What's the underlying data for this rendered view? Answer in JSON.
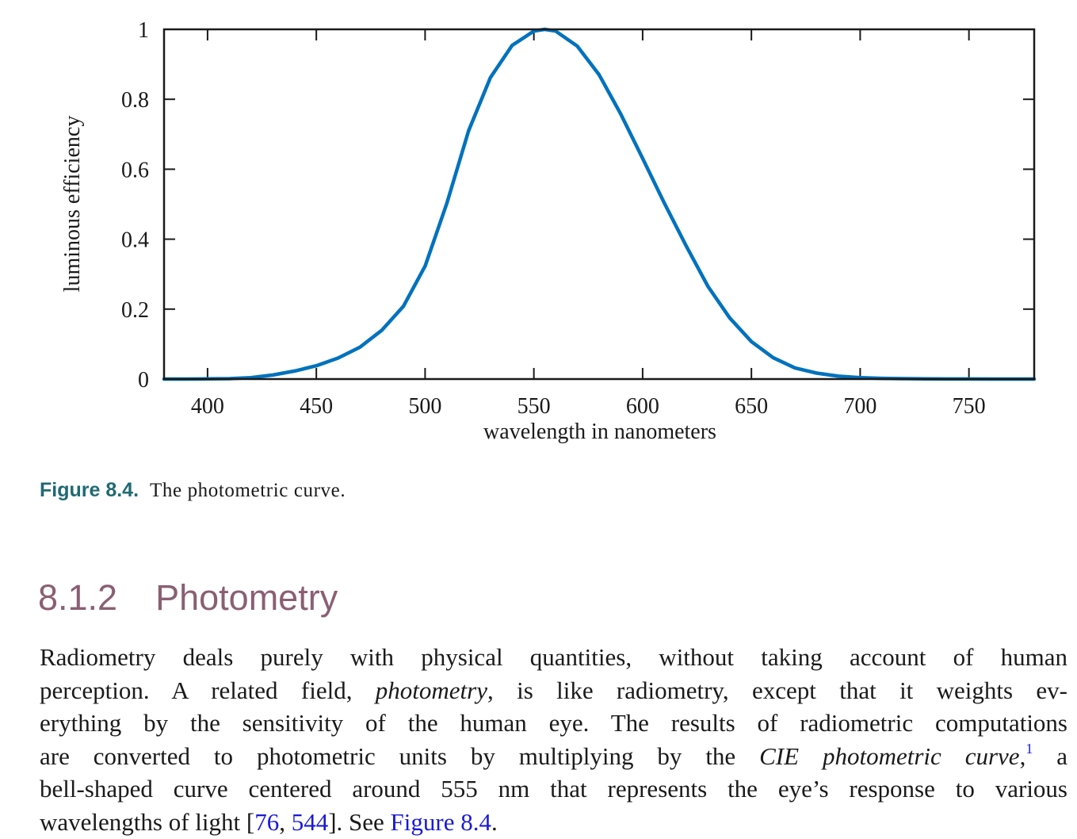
{
  "chart_data": {
    "type": "line",
    "xlabel": "wavelength in nanometers",
    "ylabel": "luminous efficiency",
    "xlim": [
      380,
      780
    ],
    "ylim": [
      0,
      1
    ],
    "x_ticks": [
      400,
      450,
      500,
      550,
      600,
      650,
      700,
      750
    ],
    "y_ticks": [
      0,
      0.2,
      0.4,
      0.6,
      0.8,
      1
    ],
    "y_tick_labels": [
      "0",
      "0.2",
      "0.4",
      "0.6",
      "0.8",
      "1"
    ],
    "grid": false,
    "line_color": "#0072bd",
    "series": [
      {
        "x": [
          380,
          390,
          400,
          410,
          420,
          430,
          440,
          450,
          460,
          470,
          480,
          490,
          500,
          510,
          520,
          530,
          540,
          550,
          555,
          560,
          570,
          580,
          590,
          600,
          610,
          620,
          630,
          640,
          650,
          660,
          670,
          680,
          690,
          700,
          710,
          720,
          730,
          740,
          750,
          760,
          770,
          780
        ],
        "y": [
          0.0,
          0.0001,
          0.0004,
          0.0012,
          0.004,
          0.0116,
          0.023,
          0.038,
          0.06,
          0.091,
          0.139,
          0.208,
          0.323,
          0.503,
          0.71,
          0.862,
          0.954,
          0.995,
          1.0,
          0.995,
          0.952,
          0.87,
          0.757,
          0.631,
          0.503,
          0.381,
          0.265,
          0.175,
          0.107,
          0.061,
          0.032,
          0.017,
          0.0082,
          0.0041,
          0.0021,
          0.00105,
          0.00052,
          0.00025,
          0.00012,
          6e-05,
          3e-05,
          1.5e-05
        ]
      }
    ]
  },
  "caption": {
    "label": "Figure 8.4.",
    "text": "The photometric curve."
  },
  "section": {
    "number": "8.1.2",
    "title": "Photometry"
  },
  "body": {
    "l1": "Radiometry deals purely with physical quantities, without taking account of human",
    "l2a": "perception. A related field,",
    "l2_em": "photometry",
    "l2b": ", is like radiometry, except that it weights ev-",
    "l3": "erything by the sensitivity of the human eye. The results of radiometric computations",
    "l4a": "are converted to photometric units by multiplying by the",
    "l4_em": "CIE photometric curve",
    "l4b": ",",
    "l4_footnote": "1",
    "l4c": "a",
    "l5": "bell-shaped curve centered around 555 nm that represents the eye’s response to various",
    "l6a": "wavelengths of light [",
    "l6_ref1": "76",
    "l6_sep": ", ",
    "l6_ref2": "544",
    "l6b": "]. See ",
    "l6_fig": "Figure 8.4",
    "l6c": "."
  }
}
